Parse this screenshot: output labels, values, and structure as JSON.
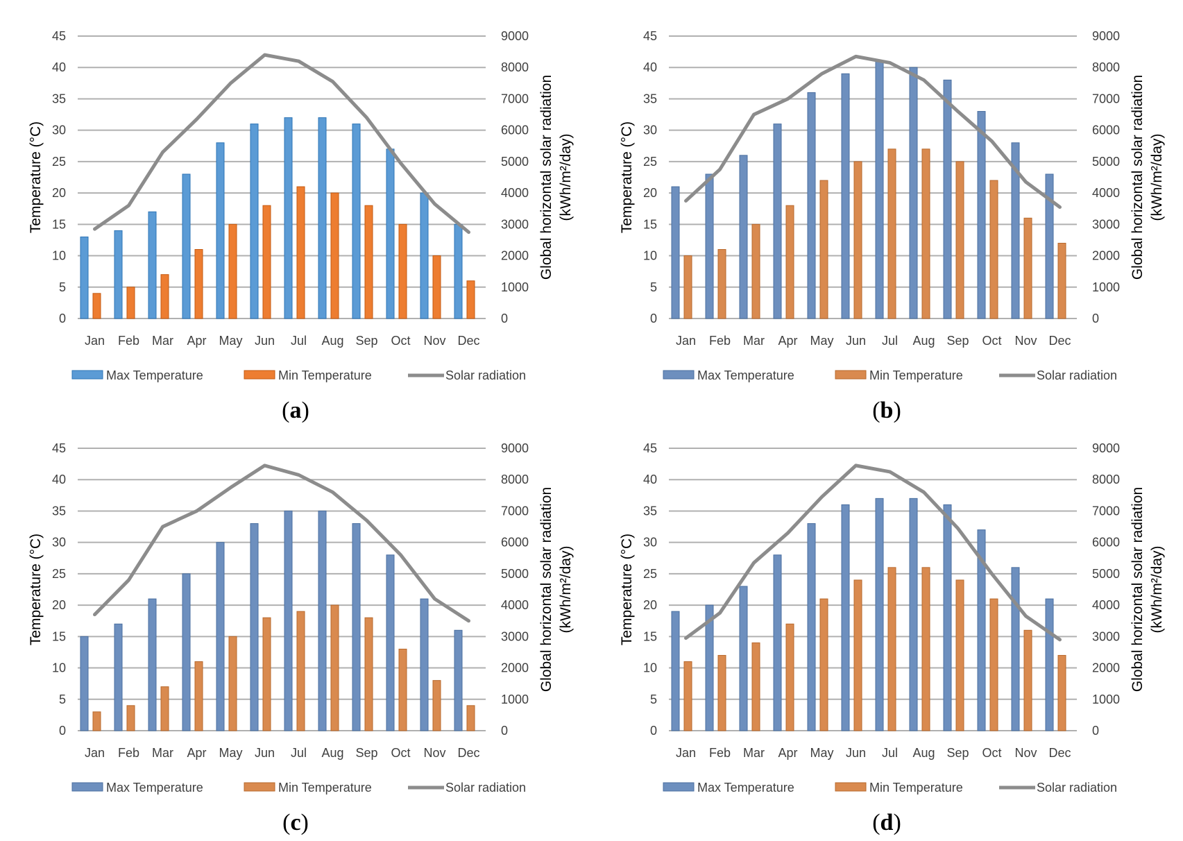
{
  "figure": {
    "chart_data": [
      {
        "type": "bar+line",
        "panel_label": "a",
        "categories": [
          "Jan",
          "Feb",
          "Mar",
          "Apr",
          "May",
          "Jun",
          "Jul",
          "Aug",
          "Sep",
          "Oct",
          "Nov",
          "Dec"
        ],
        "series": [
          {
            "name": "Max Temperature",
            "axis": "left",
            "type": "bar",
            "values": [
              13,
              14,
              17,
              23,
              28,
              31,
              32,
              32,
              31,
              27,
              20,
              15
            ]
          },
          {
            "name": "Min Temperature",
            "axis": "left",
            "type": "bar",
            "values": [
              4,
              5,
              7,
              11,
              15,
              18,
              21,
              20,
              18,
              15,
              10,
              6
            ]
          },
          {
            "name": "Solar radiation",
            "axis": "right",
            "type": "line",
            "values": [
              2850,
              3600,
              5300,
              6350,
              7500,
              8400,
              8200,
              7550,
              6400,
              4950,
              3650,
              2750
            ]
          }
        ],
        "ylabel": "Temperature (°C)",
        "y2label_line1": "Global horizontal solar radiation",
        "y2label_line2": "(kWh/m²/day)",
        "ylim": [
          0,
          45
        ],
        "y2lim": [
          0,
          9000
        ],
        "yticks": [
          "0",
          "5",
          "10",
          "15",
          "20",
          "25",
          "30",
          "35",
          "40",
          "45"
        ],
        "y2ticks": [
          "0",
          "1000",
          "2000",
          "3000",
          "4000",
          "5000",
          "6000",
          "7000",
          "8000",
          "9000"
        ],
        "colors": {
          "max": "#5b9bd5",
          "max_edge": "#2e75b6",
          "min": "#ed7d31",
          "min_edge": "#c55a11",
          "line": "#8c8c8c",
          "grid": "#b0b0b0"
        }
      },
      {
        "type": "bar+line",
        "panel_label": "b",
        "categories": [
          "Jan",
          "Feb",
          "Mar",
          "Apr",
          "May",
          "Jun",
          "Jul",
          "Aug",
          "Sep",
          "Oct",
          "Nov",
          "Dec"
        ],
        "series": [
          {
            "name": "Max Temperature",
            "axis": "left",
            "type": "bar",
            "values": [
              21,
              23,
              26,
              31,
              36,
              39,
              41,
              40,
              38,
              33,
              28,
              23
            ]
          },
          {
            "name": "Min Temperature",
            "axis": "left",
            "type": "bar",
            "values": [
              10,
              11,
              15,
              18,
              22,
              25,
              27,
              27,
              25,
              22,
              16,
              12
            ]
          },
          {
            "name": "Solar radiation",
            "axis": "right",
            "type": "line",
            "values": [
              3750,
              4750,
              6500,
              7000,
              7800,
              8350,
              8150,
              7600,
              6600,
              5650,
              4350,
              3550
            ]
          }
        ],
        "ylabel": "Temperature (°C)",
        "y2label_line1": "Global horizontal solar radiation",
        "y2label_line2": "(kWh/m²/day)",
        "ylim": [
          0,
          45
        ],
        "y2lim": [
          0,
          9000
        ],
        "yticks": [
          "0",
          "5",
          "10",
          "15",
          "20",
          "25",
          "30",
          "35",
          "40",
          "45"
        ],
        "y2ticks": [
          "0",
          "1000",
          "2000",
          "3000",
          "4000",
          "5000",
          "6000",
          "7000",
          "8000",
          "9000"
        ],
        "colors": {
          "max": "#6d8fbe",
          "max_edge": "#4a6fa0",
          "min": "#d98a4f",
          "min_edge": "#b8692e",
          "line": "#8c8c8c",
          "grid": "#b0b0b0"
        }
      },
      {
        "type": "bar+line",
        "panel_label": "c",
        "categories": [
          "Jan",
          "Feb",
          "Mar",
          "Apr",
          "May",
          "Jun",
          "Jul",
          "Aug",
          "Sep",
          "Oct",
          "Nov",
          "Dec"
        ],
        "series": [
          {
            "name": "Max Temperature",
            "axis": "left",
            "type": "bar",
            "values": [
              15,
              17,
              21,
              25,
              30,
              33,
              35,
              35,
              33,
              28,
              21,
              16
            ]
          },
          {
            "name": "Min Temperature",
            "axis": "left",
            "type": "bar",
            "values": [
              3,
              4,
              7,
              11,
              15,
              18,
              19,
              20,
              18,
              13,
              8,
              4
            ]
          },
          {
            "name": "Solar radiation",
            "axis": "right",
            "type": "line",
            "values": [
              3700,
              4800,
              6500,
              7000,
              7750,
              8450,
              8150,
              7600,
              6700,
              5600,
              4200,
              3500
            ]
          }
        ],
        "ylabel": "Temperature (°C)",
        "y2label_line1": "Global horizontal solar radiation",
        "y2label_line2": "(kWh/m²/day)",
        "ylim": [
          0,
          45
        ],
        "y2lim": [
          0,
          9000
        ],
        "yticks": [
          "0",
          "5",
          "10",
          "15",
          "20",
          "25",
          "30",
          "35",
          "40",
          "45"
        ],
        "y2ticks": [
          "0",
          "1000",
          "2000",
          "3000",
          "4000",
          "5000",
          "6000",
          "7000",
          "8000",
          "9000"
        ],
        "colors": {
          "max": "#6d8fbe",
          "max_edge": "#4a6fa0",
          "min": "#d98a4f",
          "min_edge": "#b8692e",
          "line": "#8c8c8c",
          "grid": "#b0b0b0"
        }
      },
      {
        "type": "bar+line",
        "panel_label": "d",
        "categories": [
          "Jan",
          "Feb",
          "Mar",
          "Apr",
          "May",
          "Jun",
          "Jul",
          "Aug",
          "Sep",
          "Oct",
          "Nov",
          "Dec"
        ],
        "series": [
          {
            "name": "Max Temperature",
            "axis": "left",
            "type": "bar",
            "values": [
              19,
              20,
              23,
              28,
              33,
              36,
              37,
              37,
              36,
              32,
              26,
              21
            ]
          },
          {
            "name": "Min Temperature",
            "axis": "left",
            "type": "bar",
            "values": [
              11,
              12,
              14,
              17,
              21,
              24,
              26,
              26,
              24,
              21,
              16,
              12
            ]
          },
          {
            "name": "Solar radiation",
            "axis": "right",
            "type": "line",
            "values": [
              2950,
              3750,
              5350,
              6300,
              7450,
              8450,
              8250,
              7600,
              6450,
              5000,
              3650,
              2900
            ]
          }
        ],
        "ylabel": "Temperature (°C)",
        "y2label_line1": "Global horizontal solar radiation",
        "y2label_line2": "(kWh/m²/day)",
        "ylim": [
          0,
          45
        ],
        "y2lim": [
          0,
          9000
        ],
        "yticks": [
          "0",
          "5",
          "10",
          "15",
          "20",
          "25",
          "30",
          "35",
          "40",
          "45"
        ],
        "y2ticks": [
          "0",
          "1000",
          "2000",
          "3000",
          "4000",
          "5000",
          "6000",
          "7000",
          "8000",
          "9000"
        ],
        "colors": {
          "max": "#6d8fbe",
          "max_edge": "#4a6fa0",
          "min": "#d98a4f",
          "min_edge": "#b8692e",
          "line": "#8c8c8c",
          "grid": "#b0b0b0"
        }
      }
    ]
  }
}
